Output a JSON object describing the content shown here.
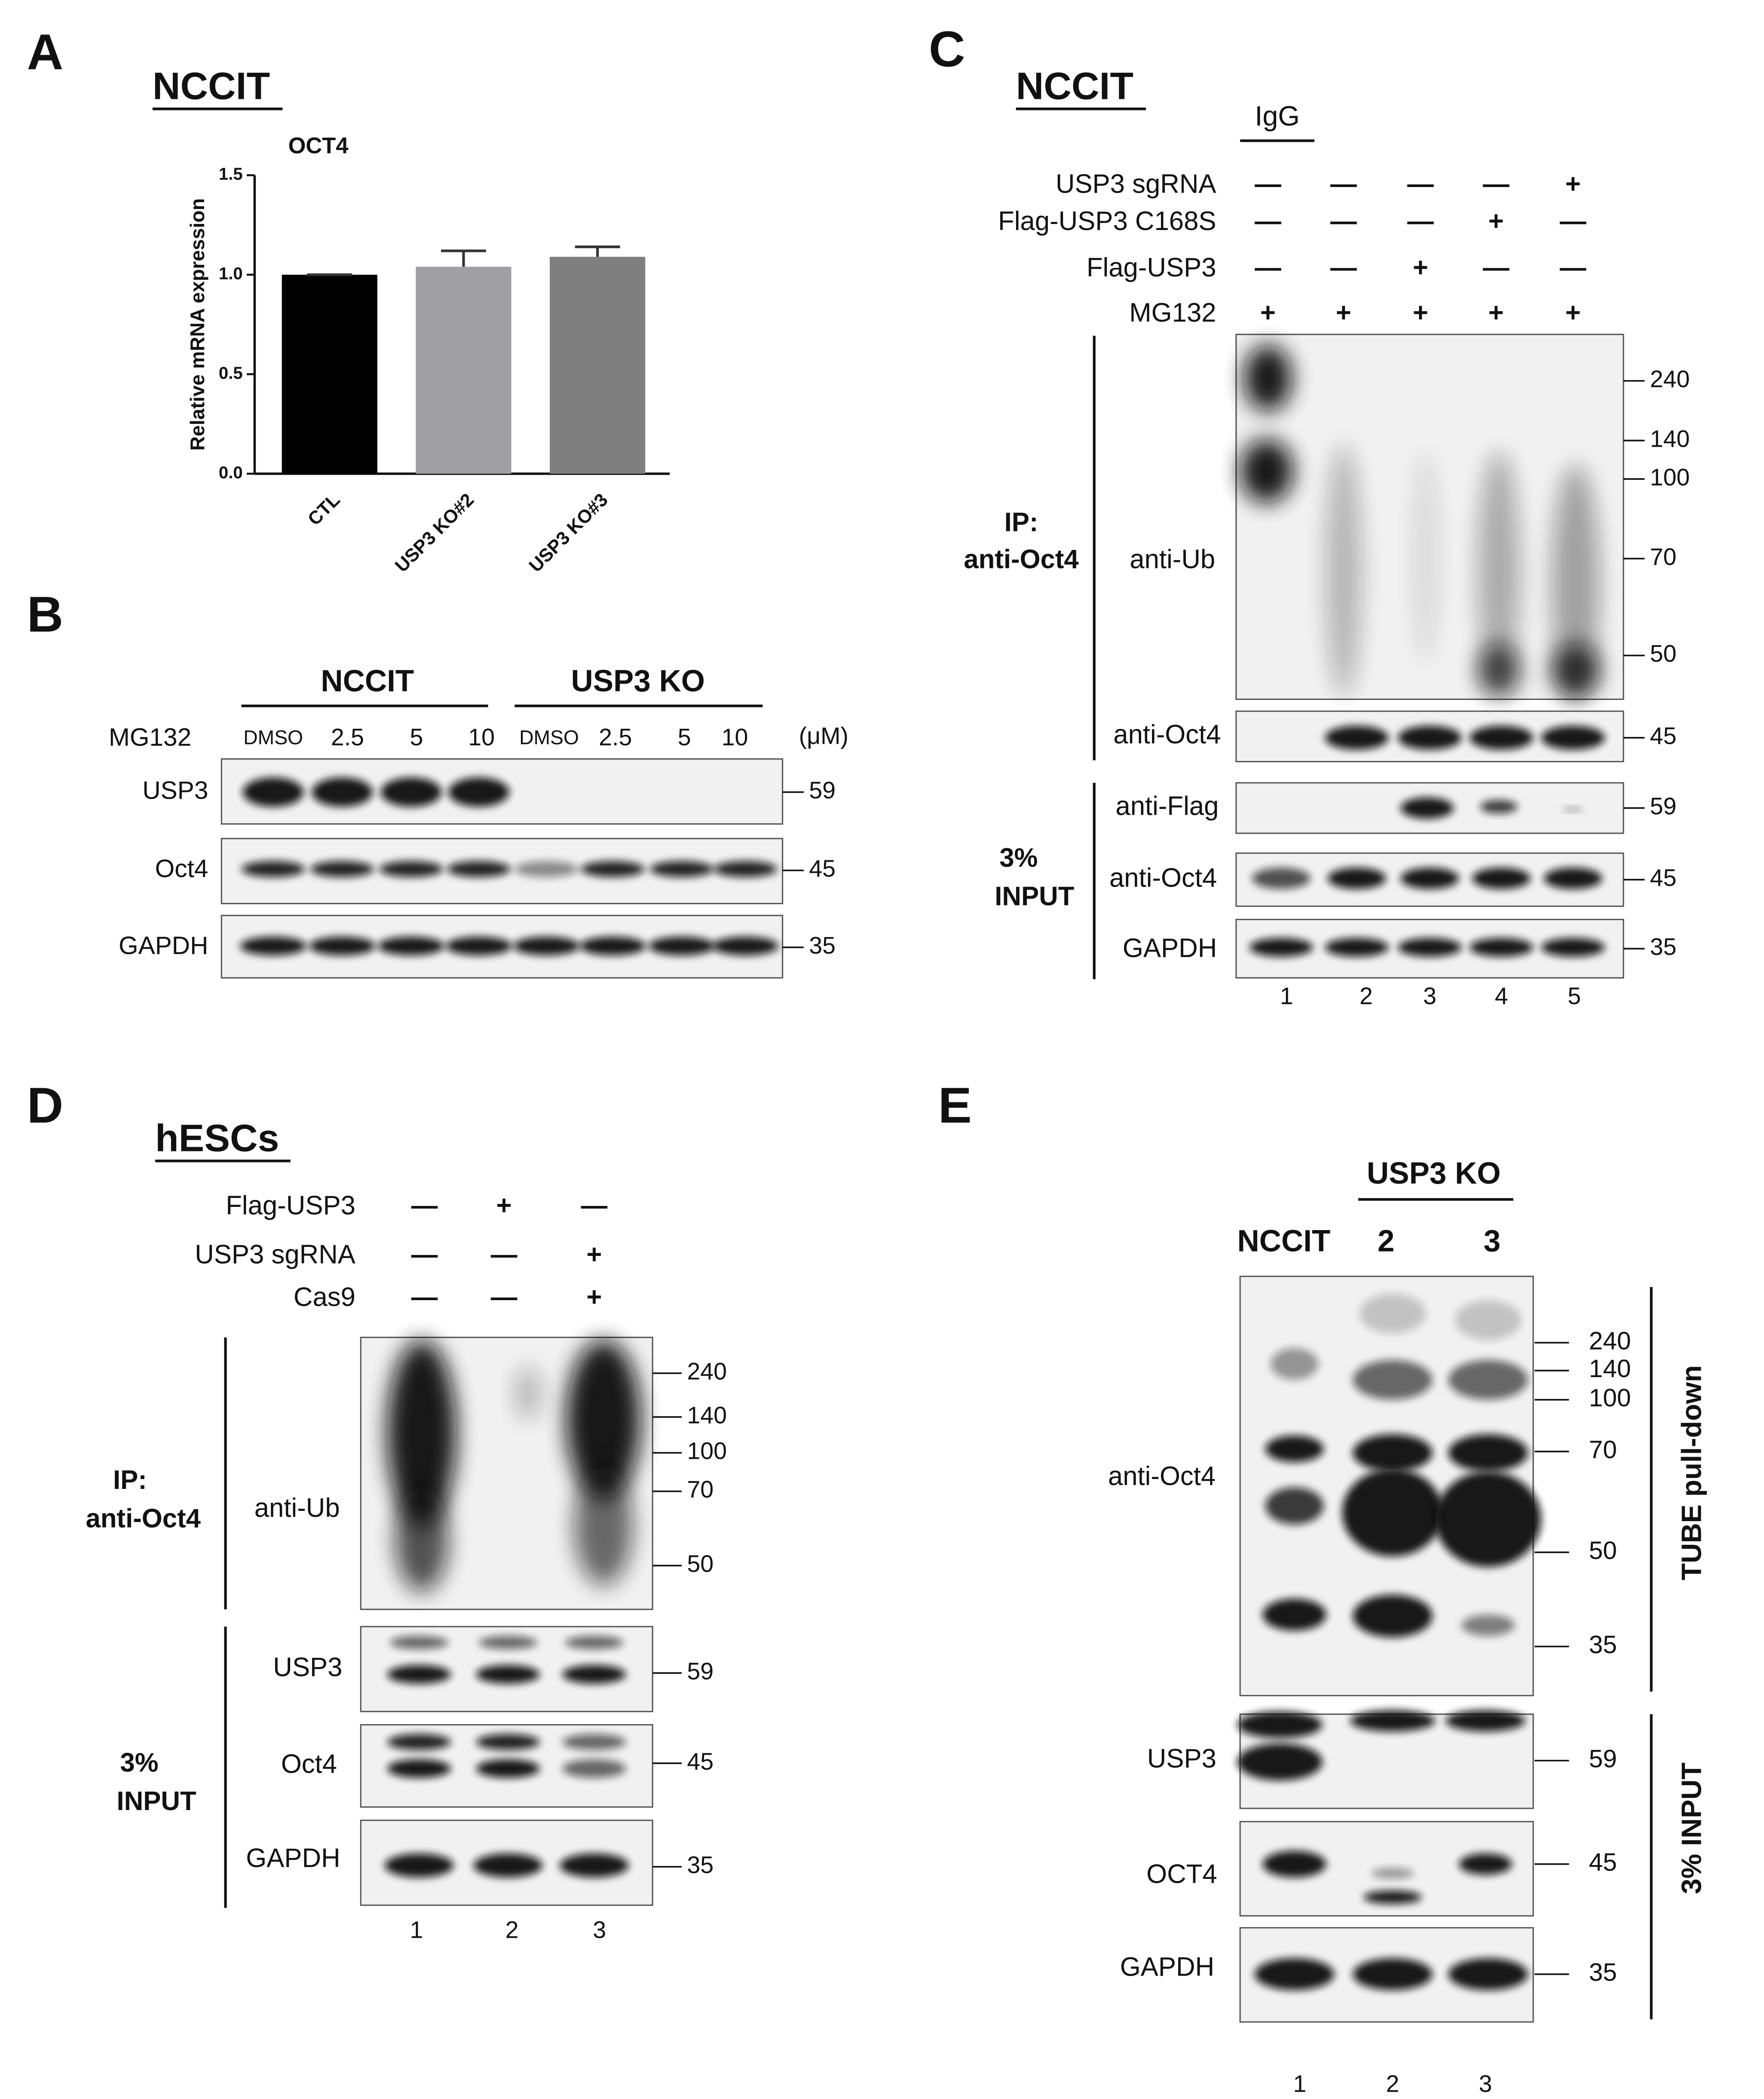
{
  "chart_data": {
    "type": "bar",
    "title": "OCT4",
    "y_label": "Relative mRNA expression",
    "categories": [
      "CTL",
      "USP3 KO#2",
      "USP3 KO#3"
    ],
    "values": [
      1.0,
      1.04,
      1.09
    ],
    "errors": [
      0,
      0.08,
      0.05
    ],
    "colors": [
      "#000000",
      "#a0a0a4",
      "#7f7f7f"
    ],
    "ylim": [
      0,
      1.5
    ],
    "yticks": [
      {
        "value": 0,
        "label": "0.0"
      },
      {
        "value": 0.5,
        "label": "0.5"
      },
      {
        "value": 1.0,
        "label": "1.0"
      },
      {
        "value": 1.5,
        "label": "1.5"
      }
    ]
  },
  "panel_a": {
    "letter": "A",
    "cell_line": "NCCIT"
  },
  "panel_b": {
    "letter": "B",
    "groups": [
      "NCCIT",
      "USP3 KO"
    ],
    "treatment": "MG132",
    "lanes": [
      "DMSO",
      "2.5",
      "5",
      "10",
      "DMSO",
      "2.5",
      "5",
      "10"
    ],
    "unit": "(μM)",
    "blots": [
      {
        "label": "USP3",
        "mw": "59"
      },
      {
        "label": "Oct4",
        "mw": "45"
      },
      {
        "label": "GAPDH",
        "mw": "35"
      }
    ]
  },
  "panel_c": {
    "letter": "C",
    "cell_line": "NCCIT",
    "control": "IgG",
    "conditions": [
      {
        "label": "USP3 sgRNA",
        "signs": [
          "—",
          "—",
          "—",
          "—",
          "+"
        ]
      },
      {
        "label": "Flag-USP3 C168S",
        "signs": [
          "—",
          "—",
          "—",
          "+",
          "—"
        ]
      },
      {
        "label": "Flag-USP3",
        "signs": [
          "—",
          "—",
          "+",
          "—",
          "—"
        ]
      },
      {
        "label": "MG132",
        "signs": [
          "+",
          "+",
          "+",
          "+",
          "+"
        ]
      }
    ],
    "ip_label": [
      "IP:",
      "anti-Oct4"
    ],
    "input_label": [
      "3%",
      "INPUT"
    ],
    "blots": [
      {
        "label": "anti-Ub",
        "mw": [
          "240",
          "140",
          "100",
          "70",
          "50"
        ]
      },
      {
        "label": "anti-Oct4",
        "mw": [
          "45"
        ]
      },
      {
        "label": "anti-Flag",
        "mw": [
          "59"
        ]
      },
      {
        "label": "anti-Oct4",
        "mw": [
          "45"
        ]
      },
      {
        "label": "GAPDH",
        "mw": [
          "35"
        ]
      }
    ],
    "lanes": [
      "1",
      "2",
      "3",
      "4",
      "5"
    ]
  },
  "panel_d": {
    "letter": "D",
    "cell_line": "hESCs",
    "conditions": [
      {
        "label": "Flag-USP3",
        "signs": [
          "—",
          "+",
          "—"
        ]
      },
      {
        "label": "USP3 sgRNA",
        "signs": [
          "—",
          "—",
          "+"
        ]
      },
      {
        "label": "Cas9",
        "signs": [
          "—",
          "—",
          "+"
        ]
      }
    ],
    "ip_label": [
      "IP:",
      "anti-Oct4"
    ],
    "input_label": [
      "3%",
      "INPUT"
    ],
    "blots": [
      {
        "label": "anti-Ub",
        "mw": [
          "240",
          "140",
          "100",
          "70",
          "50"
        ]
      },
      {
        "label": "USP3",
        "mw": [
          "59"
        ]
      },
      {
        "label": "Oct4",
        "mw": [
          "45"
        ]
      },
      {
        "label": "GAPDH",
        "mw": [
          "35"
        ]
      }
    ],
    "lanes": [
      "1",
      "2",
      "3"
    ]
  },
  "panel_e": {
    "letter": "E",
    "group": "USP3 KO",
    "lane_headers": [
      "NCCIT",
      "2",
      "3"
    ],
    "side_labels": [
      "TUBE pull-down",
      "3% INPUT"
    ],
    "blots": [
      {
        "label": "anti-Oct4",
        "mw": [
          "240",
          "140",
          "100",
          "70",
          "50",
          "35"
        ]
      },
      {
        "label": "USP3",
        "mw": [
          "59"
        ]
      },
      {
        "label": "OCT4",
        "mw": [
          "45"
        ]
      },
      {
        "label": "GAPDH",
        "mw": [
          "35"
        ]
      }
    ],
    "lanes": [
      "1",
      "2",
      "3"
    ]
  }
}
